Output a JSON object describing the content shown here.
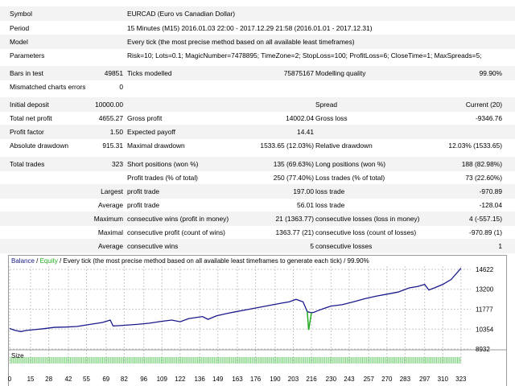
{
  "header": {
    "symbol_label": "Symbol",
    "symbol_value": "EURCAD (Euro vs Canadian Dollar)",
    "period_label": "Period",
    "period_value": "15 Minutes (M15) 2016.01.03 22:00 - 2017.12.29 21:58 (2016.01.01 - 2017.12.31)",
    "model_label": "Model",
    "model_value": "Every tick (the most precise method based on all available least timeframes)",
    "parameters_label": "Parameters",
    "parameters_value": "Risk=10; Lots=0.1; MagicNumber=7478895; TimeZone=2; StopLoss=100; ProfitLoss=6; CloseTime=1; MaxSpreads=5;"
  },
  "tests": {
    "bars_label": "Bars in test",
    "bars_value": "49851",
    "ticks_label": "Ticks modelled",
    "ticks_value": "75875167",
    "quality_label": "Modelling quality",
    "quality_value": "99.90%",
    "mismatch_label": "Mismatched charts errors",
    "mismatch_value": "0"
  },
  "results": {
    "initial_deposit_label": "Initial deposit",
    "initial_deposit_value": "10000.00",
    "spread_label": "Spread",
    "spread_value": "Current (20)",
    "net_profit_label": "Total net profit",
    "net_profit_value": "4655.27",
    "gross_profit_label": "Gross profit",
    "gross_profit_value": "14002.04",
    "gross_loss_label": "Gross loss",
    "gross_loss_value": "-9346.76",
    "profit_factor_label": "Profit factor",
    "profit_factor_value": "1.50",
    "expected_payoff_label": "Expected payoff",
    "expected_payoff_value": "14.41",
    "abs_drawdown_label": "Absolute drawdown",
    "abs_drawdown_value": "915.31",
    "max_drawdown_label": "Maximal drawdown",
    "max_drawdown_value": "1533.65 (12.03%)",
    "rel_drawdown_label": "Relative drawdown",
    "rel_drawdown_value": "12.03% (1533.65)"
  },
  "trades": {
    "total_label": "Total trades",
    "total_value": "323",
    "short_label": "Short positions (won %)",
    "short_value": "135 (69.63%)",
    "long_label": "Long positions (won %)",
    "long_value": "188 (82.98%)",
    "profit_trades_label": "Profit trades (% of total)",
    "profit_trades_value": "250 (77.40%)",
    "loss_trades_label": "Loss trades (% of total)",
    "loss_trades_value": "73 (22.60%)",
    "largest_label": "Largest",
    "largest_profit_label": "profit trade",
    "largest_profit_value": "197.00",
    "largest_loss_label": "loss trade",
    "largest_loss_value": "-970.89",
    "average_label": "Average",
    "average_profit_label": "profit trade",
    "average_profit_value": "56.01",
    "average_loss_label": "loss trade",
    "average_loss_value": "-128.04",
    "maximum_label": "Maximum",
    "max_cons_wins_label": "consecutive wins (profit in money)",
    "max_cons_wins_value": "21 (1363.77)",
    "max_cons_losses_label": "consecutive losses (loss in money)",
    "max_cons_losses_value": "4 (-557.15)",
    "maximal_label": "Maximal",
    "maximal_cons_profit_label": "consecutive profit (count of wins)",
    "maximal_cons_profit_value": "1363.77 (21)",
    "maximal_cons_loss_label": "consecutive loss (count of losses)",
    "maximal_cons_loss_value": "-970.89 (1)",
    "avg_label": "Average",
    "avg_cons_wins_label": "consecutive wins",
    "avg_cons_wins_value": "5",
    "avg_cons_losses_label": "consecutive losses",
    "avg_cons_losses_value": "1"
  },
  "colors": {
    "balance": "#1a1a8c",
    "equity": "#22aa22",
    "size_bar": "#7fd27f",
    "grid": "#c8c8c8"
  },
  "chart_data": {
    "type": "line",
    "legend": {
      "balance_label": "Balance",
      "sep1": " / ",
      "equity_label": "Equity",
      "rest": " / Every tick (the most precise method based on all available least timeframes to generate each tick)",
      "quality": " / 99.90%"
    },
    "size_label": "Size",
    "y_ticks": [
      "14622",
      "13200",
      "11777",
      "10354",
      "8932"
    ],
    "y_tick_values": [
      14622,
      13200,
      11777,
      10354,
      8932
    ],
    "x_ticks": [
      "0",
      "15",
      "28",
      "42",
      "55",
      "69",
      "82",
      "96",
      "109",
      "122",
      "136",
      "149",
      "163",
      "176",
      "190",
      "203",
      "216",
      "230",
      "243",
      "257",
      "270",
      "283",
      "297",
      "310",
      "323"
    ],
    "ylim": [
      8932,
      14850
    ],
    "xlim": [
      0,
      330
    ],
    "series": [
      {
        "name": "Balance",
        "x": [
          0,
          4,
          8,
          12,
          18,
          24,
          32,
          40,
          48,
          58,
          66,
          72,
          74,
          78,
          84,
          92,
          100,
          108,
          116,
          122,
          128,
          138,
          142,
          148,
          156,
          162,
          170,
          178,
          186,
          194,
          200,
          205,
          210,
          213,
          216,
          218,
          220,
          224,
          230,
          238,
          246,
          254,
          262,
          270,
          278,
          286,
          292,
          297,
          300,
          304,
          310,
          316,
          323
        ],
        "y": [
          10400,
          10260,
          10180,
          10260,
          10320,
          10380,
          10480,
          10500,
          10540,
          10700,
          10820,
          11000,
          10580,
          10600,
          10640,
          10700,
          10780,
          10900,
          11000,
          10880,
          11100,
          11250,
          11050,
          11300,
          11480,
          11600,
          11750,
          11900,
          12050,
          12200,
          12300,
          12480,
          12300,
          11600,
          11520,
          11560,
          11650,
          11800,
          12000,
          12100,
          12300,
          12520,
          12700,
          12850,
          13000,
          13300,
          13400,
          13550,
          13150,
          13300,
          13550,
          13900,
          14700
        ]
      },
      {
        "name": "Equity",
        "x": [
          213,
          214,
          215,
          216
        ],
        "y": [
          11600,
          10300,
          10900,
          11520
        ]
      }
    ]
  }
}
